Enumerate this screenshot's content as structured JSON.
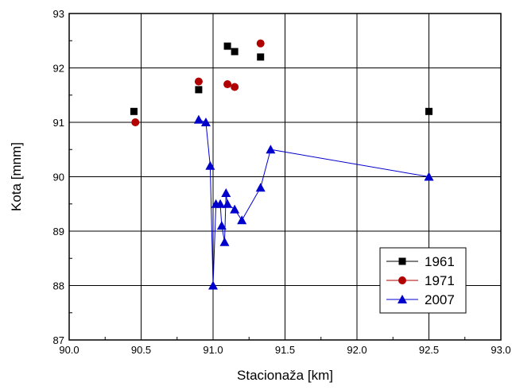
{
  "chart_data": {
    "type": "scatter",
    "xlabel": "Stacionaža [km]",
    "ylabel": "Kota [mnm]",
    "xlim": [
      90.0,
      93.0
    ],
    "ylim": [
      87,
      93
    ],
    "x_ticks": [
      90.0,
      90.5,
      91.0,
      91.5,
      92.0,
      92.5,
      93.0
    ],
    "y_ticks": [
      87,
      88,
      89,
      90,
      91,
      92,
      93
    ],
    "x_tick_labels": [
      "90.0",
      "90.5",
      "91.0",
      "91.5",
      "92.0",
      "92.5",
      "93.0"
    ],
    "y_tick_labels": [
      "87",
      "88",
      "89",
      "90",
      "91",
      "92",
      "93"
    ],
    "grid": true,
    "legend_position": "bottom-right",
    "series": [
      {
        "name": "1961",
        "color": "#000000",
        "marker": "square",
        "line": false,
        "points": [
          [
            90.45,
            91.2
          ],
          [
            90.9,
            91.6
          ],
          [
            91.1,
            92.4
          ],
          [
            91.15,
            92.3
          ],
          [
            91.33,
            92.2
          ],
          [
            92.5,
            91.2
          ]
        ]
      },
      {
        "name": "1971",
        "color": "#b00000",
        "marker": "circle",
        "line": false,
        "points": [
          [
            90.46,
            91.0
          ],
          [
            90.9,
            91.75
          ],
          [
            91.1,
            91.7
          ],
          [
            91.15,
            91.65
          ],
          [
            91.33,
            92.45
          ]
        ]
      },
      {
        "name": "2007",
        "color": "#0000cc",
        "marker": "triangle",
        "line": true,
        "points": [
          [
            90.9,
            91.05
          ],
          [
            90.95,
            91.0
          ],
          [
            90.98,
            90.2
          ],
          [
            91.0,
            88.0
          ],
          [
            91.02,
            89.5
          ],
          [
            91.05,
            89.5
          ],
          [
            91.06,
            89.1
          ],
          [
            91.08,
            88.8
          ],
          [
            91.09,
            89.7
          ],
          [
            91.1,
            89.5
          ],
          [
            91.15,
            89.4
          ],
          [
            91.2,
            89.2
          ],
          [
            91.33,
            89.8
          ],
          [
            91.4,
            90.5
          ],
          [
            92.5,
            90.0
          ]
        ]
      }
    ]
  }
}
